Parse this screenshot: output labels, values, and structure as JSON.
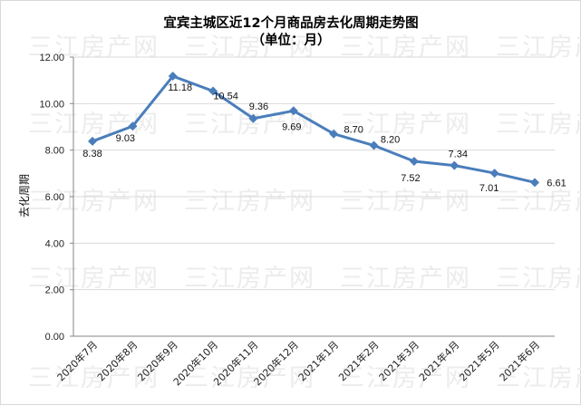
{
  "chart_data": {
    "type": "line",
    "title": "宜宾主城区近12个月商品房去化周期走势图",
    "subtitle": "（单位：月）",
    "xlabel": "",
    "ylabel": "去化周期",
    "categories": [
      "2020年7月",
      "2020年8月",
      "2020年9月",
      "2020年10月",
      "2020年11月",
      "2020年12月",
      "2021年1月",
      "2021年2月",
      "2021年3月",
      "2021年4月",
      "2021年5月",
      "2021年6月"
    ],
    "series": [
      {
        "name": "去化周期",
        "values": [
          8.38,
          9.03,
          11.18,
          10.54,
          9.36,
          9.69,
          8.7,
          8.2,
          7.52,
          7.34,
          7.01,
          6.61
        ],
        "data_labels": [
          "8.38",
          "9.03",
          "11.18",
          "10.54",
          "9.36",
          "9.69",
          "8.70",
          "8.20",
          "7.52",
          "7.34",
          "7.01",
          "6.61"
        ],
        "color": "#4a7ebb",
        "marker": "diamond"
      }
    ],
    "ylim": [
      0,
      12
    ],
    "yticks": [
      "0.00",
      "2.00",
      "4.00",
      "6.00",
      "8.00",
      "10.00",
      "12.00"
    ],
    "grid": true,
    "legend": "none"
  },
  "watermark": "三江房产网",
  "colors": {
    "line": "#4a7ebb",
    "grid": "#d9d9d9",
    "axis": "#868686",
    "watermark": "#ececec"
  }
}
